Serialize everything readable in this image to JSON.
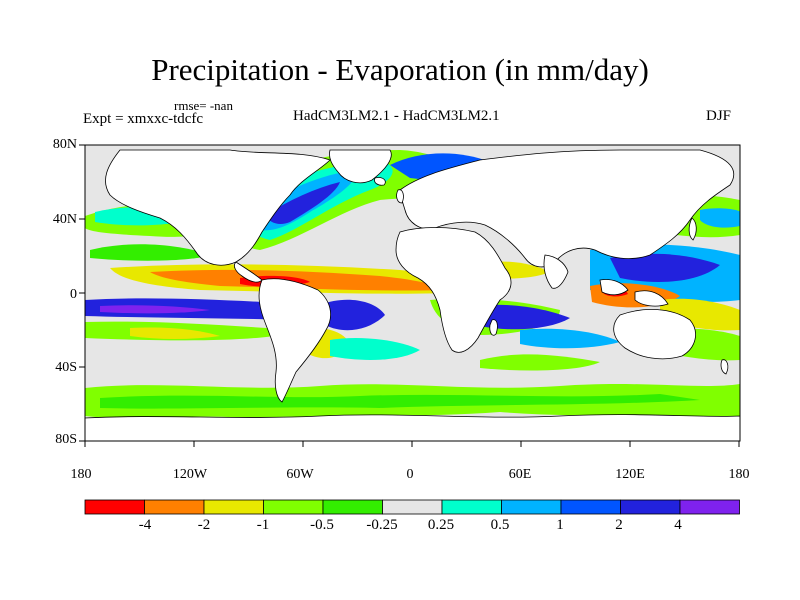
{
  "title": "Precipitation - Evaporation (in mm/day)",
  "rmse": "rmse= -nan",
  "expt": "Expt = xmxxc-tdcfc",
  "model": "HadCM3LM2.1 - HadCM3LM2.1",
  "season": "DJF",
  "lat_labels": [
    "80N",
    "40N",
    "0",
    "40S",
    "80S"
  ],
  "lon_labels": [
    "180",
    "120W",
    "60W",
    "0",
    "60E",
    "120E",
    "180"
  ],
  "colorbar": {
    "labels": [
      "-4",
      "-2",
      "-1",
      "-0.5",
      "-0.25",
      "0.25",
      "0.5",
      "1",
      "2",
      "4"
    ],
    "colors": [
      "#ff0000",
      "#ff8000",
      "#e8e800",
      "#80ff00",
      "#33ee00",
      "#e6e6e6",
      "#00ffcc",
      "#00b3ff",
      "#0055ff",
      "#2222dd",
      "#7f22ee"
    ]
  },
  "colors": {
    "land": "#ffffff",
    "ocean_neutral": "#e6e6e6",
    "coast": "#000000"
  }
}
